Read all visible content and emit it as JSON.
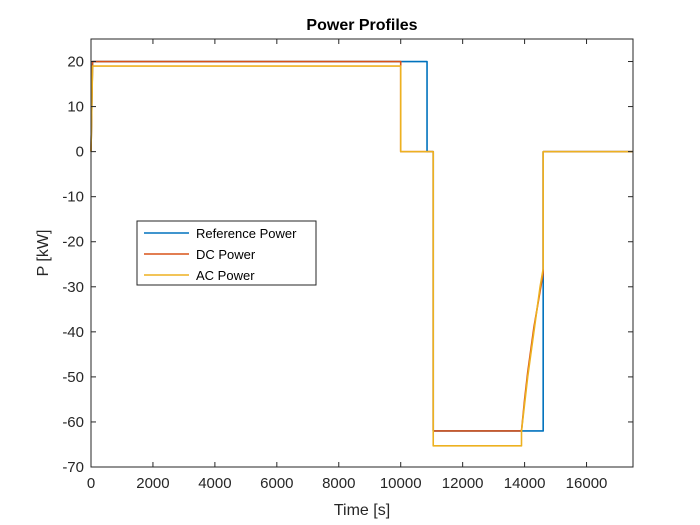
{
  "chart_data": {
    "type": "line",
    "title": "Power Profiles",
    "xlabel": "Time [s]",
    "ylabel": "P [kW]",
    "xlim": [
      0,
      17500
    ],
    "ylim": [
      -70,
      25
    ],
    "xticks": [
      0,
      2000,
      4000,
      6000,
      8000,
      10000,
      12000,
      14000,
      16000
    ],
    "xtick_labels": [
      "0",
      "2000",
      "4000",
      "6000",
      "8000",
      "10000",
      "12000",
      "14000",
      "16000"
    ],
    "yticks": [
      -70,
      -60,
      -50,
      -40,
      -30,
      -20,
      -10,
      0,
      10,
      20
    ],
    "ytick_labels": [
      "-70",
      "-60",
      "-50",
      "-40",
      "-30",
      "-20",
      "-10",
      "0",
      "10",
      "20"
    ],
    "grid": false,
    "legend_position": "center-left",
    "series": [
      {
        "name": "Reference Power",
        "color": "#0072BD",
        "x": [
          0,
          50,
          10850,
          10850,
          11050,
          11050,
          14600,
          14600,
          17500
        ],
        "y": [
          0,
          20,
          20,
          0,
          0,
          -62,
          -62,
          0,
          0
        ]
      },
      {
        "name": "DC Power",
        "color": "#D95319",
        "x": [
          0,
          50,
          10000,
          10000,
          11050,
          11050,
          13900,
          14000,
          14100,
          14200,
          14300,
          14400,
          14500,
          14600,
          14600,
          17500
        ],
        "y": [
          0,
          20,
          20,
          0,
          0,
          -62,
          -62,
          -55,
          -49,
          -44,
          -39,
          -35,
          -31,
          -27,
          0,
          0
        ]
      },
      {
        "name": "AC Power",
        "color": "#EDB120",
        "x": [
          0,
          50,
          10000,
          10000,
          11050,
          11050,
          13900,
          13900,
          14000,
          14100,
          14200,
          14300,
          14400,
          14500,
          14600,
          14600,
          17500
        ],
        "y": [
          0,
          19,
          19,
          0,
          0,
          -65.3,
          -65.3,
          -62,
          -56,
          -50,
          -45,
          -40,
          -35,
          -30,
          -26,
          0,
          0
        ]
      }
    ]
  }
}
